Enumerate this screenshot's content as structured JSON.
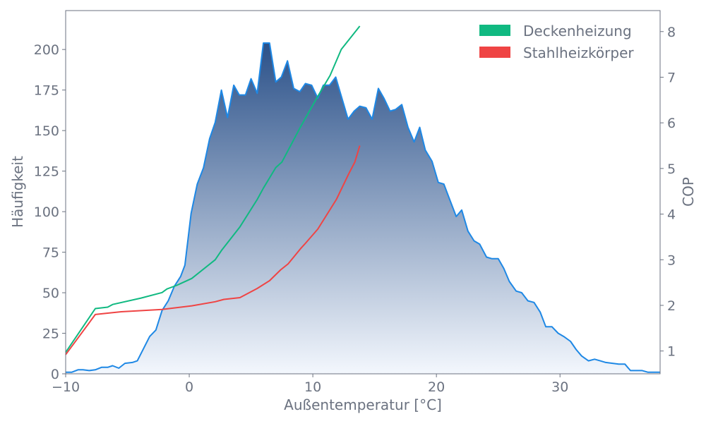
{
  "chart_data": {
    "type": "area+line",
    "title": "",
    "xlabel": "Außentemperatur [°C]",
    "ylabel": "Häufigkeit",
    "y2label": "COP",
    "xlim": [
      -10,
      38.1
    ],
    "ylim": [
      0,
      224
    ],
    "y2lim": [
      0.5,
      8.46
    ],
    "xticks": [
      -10,
      0,
      10,
      20,
      30
    ],
    "xtick_labels": [
      "−10",
      "0",
      "10",
      "20",
      "30"
    ],
    "yticks": [
      0,
      25,
      50,
      75,
      100,
      125,
      150,
      175,
      200
    ],
    "yticks_labels": [
      "0",
      "25",
      "50",
      "75",
      "100",
      "125",
      "150",
      "175",
      "200"
    ],
    "y2ticks": [
      1,
      2,
      3,
      4,
      5,
      6,
      7,
      8
    ],
    "y2tick_labels": [
      "1",
      "2",
      "3",
      "4",
      "5",
      "6",
      "7",
      "8"
    ],
    "grid": false,
    "legend_position": "top-right",
    "histogram": {
      "name": "Häufigkeit",
      "color": "#1e88e5",
      "fill_top": "#2b5189",
      "fill_bottom": "#f3f7fd",
      "x": [
        -10,
        -9.5,
        -9,
        -8.6,
        -8.1,
        -7.6,
        -7.1,
        -6.6,
        -6.2,
        -5.7,
        -5.2,
        -4.6,
        -4.2,
        -3.2,
        -2.7,
        -2.2,
        -1.7,
        -1.2,
        -0.7,
        -0.35,
        0.15,
        0.65,
        1.15,
        1.65,
        2.1,
        2.6,
        3.1,
        3.6,
        4.05,
        4.55,
        5.0,
        5.5,
        6.0,
        6.5,
        7.0,
        7.45,
        7.95,
        8.45,
        8.95,
        9.4,
        9.9,
        10.4,
        10.85,
        11.35,
        11.85,
        12.85,
        13.35,
        13.8,
        14.3,
        14.8,
        15.3,
        15.75,
        16.25,
        16.7,
        17.2,
        17.7,
        18.2,
        18.65,
        19.1,
        19.65,
        20.15,
        20.6,
        21.1,
        21.6,
        22.05,
        22.55,
        23.05,
        23.5,
        24.05,
        24.5,
        25.0,
        25.45,
        25.9,
        26.45,
        26.9,
        27.4,
        27.9,
        28.4,
        28.85,
        29.35,
        29.85,
        30.3,
        30.85,
        31.3,
        31.75,
        32.3,
        32.8,
        33.25,
        33.7,
        34.25,
        34.75,
        35.25,
        35.7,
        36.65,
        37.1,
        38.1
      ],
      "values": [
        1,
        1,
        2.5,
        2.5,
        2,
        2.5,
        4,
        4,
        5,
        3.5,
        6.5,
        7,
        8,
        23,
        27,
        39,
        45,
        54,
        60,
        67,
        99,
        117,
        127,
        145,
        155,
        175,
        158,
        178,
        172,
        172,
        182,
        173,
        204,
        204,
        180,
        183,
        193,
        176,
        174,
        179,
        178,
        170,
        178,
        178,
        183,
        157,
        162,
        165,
        164,
        157,
        176,
        170,
        162,
        163,
        166,
        152,
        143,
        152,
        138,
        131,
        118,
        117,
        107,
        97,
        101,
        88,
        82,
        80,
        72,
        71,
        71,
        65,
        57,
        51,
        50,
        45,
        44,
        38,
        29,
        29,
        25,
        23,
        20,
        15,
        11,
        8,
        9,
        8,
        7,
        6.5,
        6,
        6,
        2,
        2,
        1,
        1
      ]
    },
    "series": [
      {
        "name": "Deckenheizung",
        "color": "#10b981",
        "x": [
          -10,
          -7.6,
          -6.6,
          -6.2,
          -3.9,
          -2.2,
          -1.8,
          -1.0,
          0.2,
          2.1,
          2.6,
          4.1,
          5.5,
          6.0,
          7.0,
          7.5,
          9.0,
          10.4,
          11.4,
          12.3,
          13.8
        ],
        "values": [
          0.97,
          1.93,
          1.96,
          2.02,
          2.16,
          2.28,
          2.36,
          2.44,
          2.59,
          3.0,
          3.2,
          3.72,
          4.32,
          4.57,
          5.02,
          5.14,
          5.91,
          6.58,
          7.04,
          7.61,
          8.12
        ]
      },
      {
        "name": "Stahlheizkörper",
        "color": "#ef4444",
        "x": [
          -10,
          -7.6,
          -6.6,
          -5.5,
          -2.2,
          0.2,
          2.1,
          2.8,
          4.1,
          5.5,
          6.5,
          7.4,
          8.0,
          9.0,
          9.4,
          10.4,
          11.9,
          12.9,
          13.4,
          13.8
        ],
        "values": [
          0.92,
          1.8,
          1.83,
          1.86,
          1.91,
          1.99,
          2.08,
          2.13,
          2.17,
          2.37,
          2.54,
          2.78,
          2.91,
          3.24,
          3.36,
          3.67,
          4.32,
          4.88,
          5.14,
          5.5
        ]
      }
    ],
    "legend": [
      "Deckenheizung",
      "Stahlheizkörper"
    ]
  }
}
